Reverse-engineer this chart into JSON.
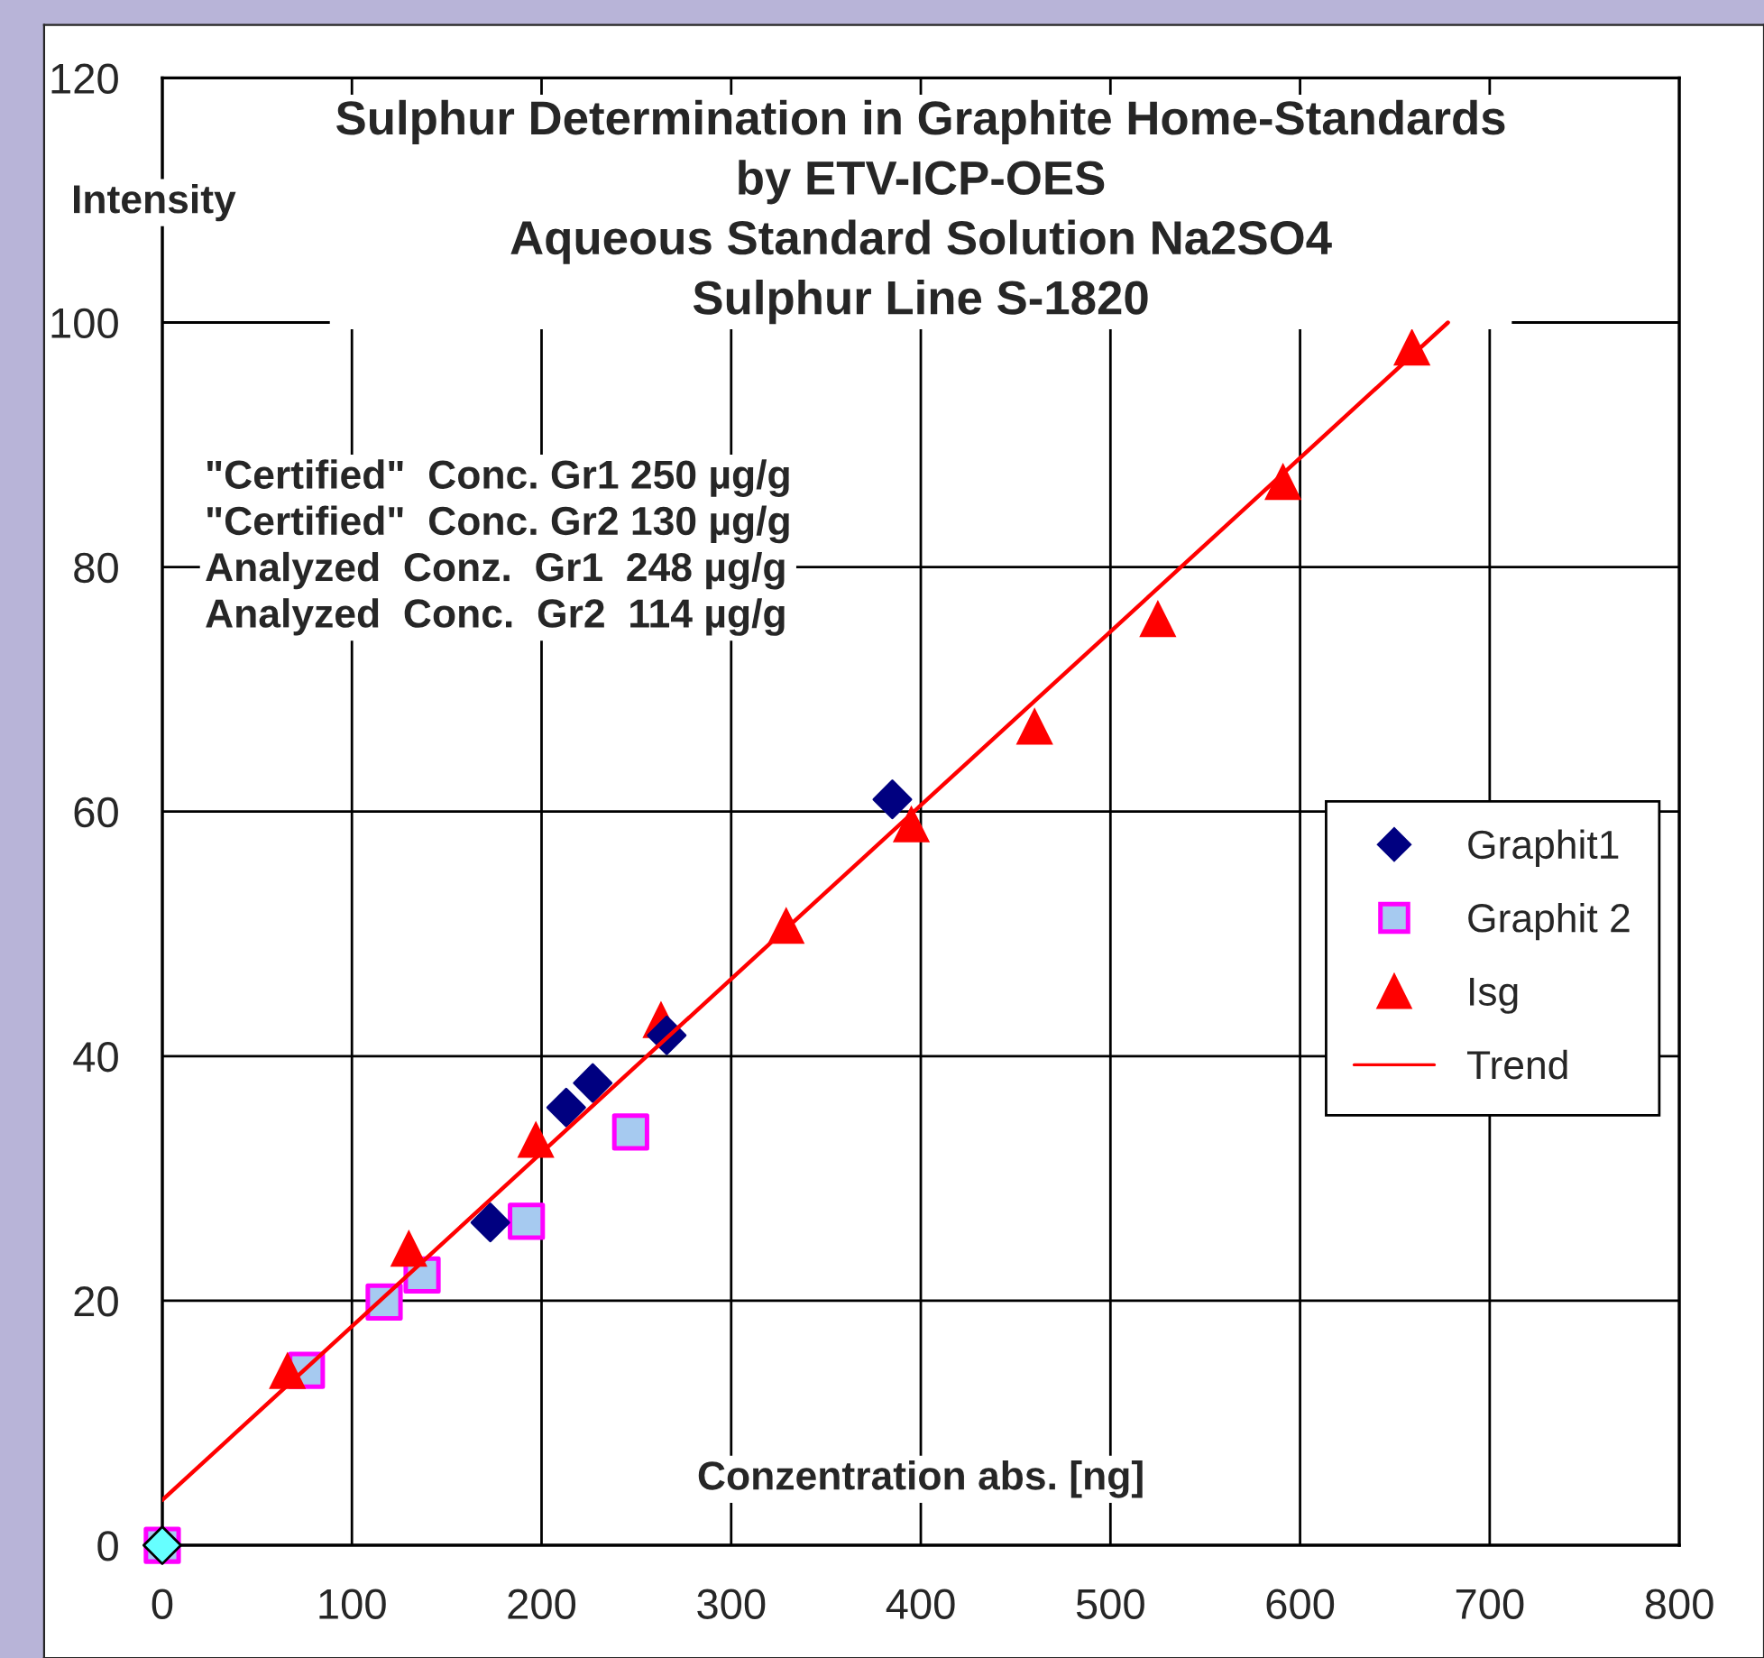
{
  "chart_data": {
    "type": "scatter",
    "title": "Sulphur Determination in Graphite Home-Standards\nby ETV-ICP-OES\nAqueous Standard Solution Na2SO4\nSulphur Line S-1820",
    "xlabel": "Conzentration abs. [ng]",
    "ylabel": "Intensity",
    "annotations": [
      "\"Certified\"  Conc. Gr1 250 µg/g\n\"Certified\"  Conc. Gr2 130 µg/g\nAnalyzed  Conz.  Gr1  248 µg/g\nAnalyzed  Conc.  Gr2  114 µg/g"
    ],
    "series": [
      {
        "name": "Graphit1",
        "marker": "diamond",
        "color": "#000080",
        "colors": [
          "#66ffff",
          "#000080",
          "#000080",
          "#000080",
          "#000080",
          "#000080"
        ],
        "x": [
          0,
          173,
          213,
          227,
          266,
          385
        ],
        "values": [
          0,
          26.4,
          35.8,
          37.8,
          41.7,
          61
        ]
      },
      {
        "name": "Graphit 2",
        "marker": "square",
        "color": "#a6caf0",
        "x": [
          0,
          76,
          117,
          137,
          192,
          247
        ],
        "values": [
          0,
          14.3,
          19.9,
          22.1,
          26.5,
          33.8
        ]
      },
      {
        "name": "Isg",
        "marker": "triangle",
        "color": "#ff0000",
        "x": [
          66,
          130,
          197,
          263,
          329,
          395,
          460,
          525,
          591,
          659
        ],
        "values": [
          14.3,
          24.3,
          33.2,
          43,
          50.7,
          59,
          67,
          75.8,
          87,
          98
        ]
      },
      {
        "name": "Trend",
        "type": "line",
        "marker": "none",
        "line_style": "solid",
        "color": "#ff0000",
        "x": [
          0,
          678
        ],
        "values": [
          3.7,
          100
        ]
      }
    ],
    "xlim": [
      0,
      800
    ],
    "ylim": [
      0,
      120
    ],
    "xticks": [
      0,
      100,
      200,
      300,
      400,
      500,
      600,
      700,
      800
    ],
    "yticks": [
      0,
      20,
      40,
      60,
      80,
      100,
      120
    ],
    "grid": true,
    "legend": "right"
  }
}
